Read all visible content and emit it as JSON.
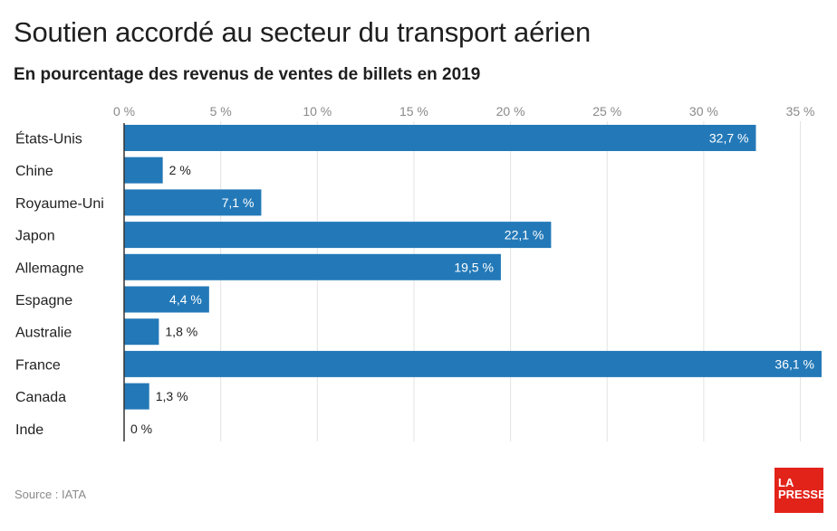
{
  "title": "Soutien accordé au secteur du transport aérien",
  "subtitle": "En pourcentage des revenus de ventes de billets en 2019",
  "source": "Source : IATA",
  "logo": {
    "line1": "LA",
    "line2": "PRESSE"
  },
  "colors": {
    "bar": "#2379b8",
    "grid": "#e3e3e3",
    "axis": "#333333",
    "logo": "#e2231a"
  },
  "chart_data": {
    "type": "bar",
    "orientation": "horizontal",
    "title": "Soutien accordé au secteur du transport aérien",
    "subtitle": "En pourcentage des revenus de ventes de billets en 2019",
    "categories": [
      "États-Unis",
      "Chine",
      "Royaume-Uni",
      "Japon",
      "Allemagne",
      "Espagne",
      "Australie",
      "France",
      "Canada",
      "Inde"
    ],
    "values": [
      32.7,
      2,
      7.1,
      22.1,
      19.5,
      4.4,
      1.8,
      36.1,
      1.3,
      0
    ],
    "value_labels": [
      "32,7 %",
      "2 %",
      "7,1 %",
      "22,1 %",
      "19,5 %",
      "4,4 %",
      "1,8 %",
      "36,1 %",
      "1,3 %",
      "0 %"
    ],
    "xticks": [
      0,
      5,
      10,
      15,
      20,
      25,
      30,
      35
    ],
    "xtick_labels": [
      "0 %",
      "5 %",
      "10 %",
      "15 %",
      "20 %",
      "25 %",
      "30 %",
      "35 %"
    ],
    "xlim": [
      0,
      36.1
    ],
    "axis_position": "top",
    "grid": true,
    "legend": "none"
  }
}
